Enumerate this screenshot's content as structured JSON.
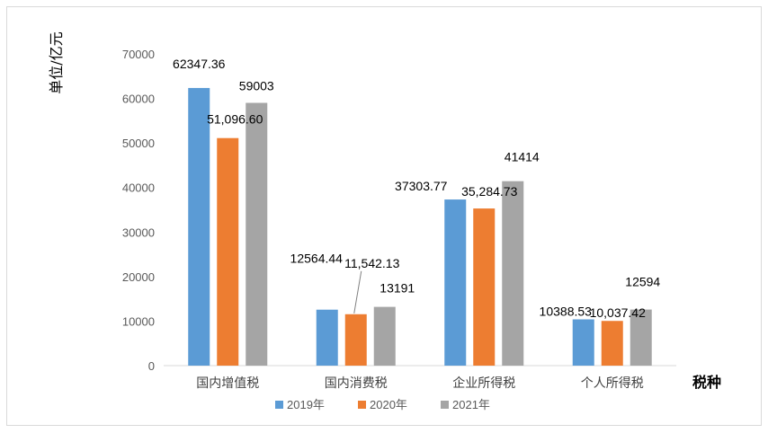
{
  "chart_data": {
    "type": "bar",
    "ylabel": "单位/亿元",
    "xlabel": "税种",
    "ylim": [
      0,
      70000
    ],
    "yticks": [
      "0",
      "10000",
      "20000",
      "30000",
      "40000",
      "50000",
      "60000",
      "70000"
    ],
    "categories": [
      "国内增值税",
      "国内消费税",
      "企业所得税",
      "个人所得税"
    ],
    "series": [
      {
        "name": "2019年",
        "color": "#5b9bd5",
        "values": [
          62347.36,
          12564.44,
          37303.77,
          10388.53
        ],
        "labels": [
          "62347.36",
          "12564.44",
          "37303.77",
          "10388.53"
        ]
      },
      {
        "name": "2020年",
        "color": "#ed7d31",
        "values": [
          51096.6,
          11542.13,
          35284.73,
          10037.42
        ],
        "labels": [
          "51,096.60",
          "11,542.13",
          "35,284.73",
          "10,037.42"
        ]
      },
      {
        "name": "2021年",
        "color": "#a5a5a5",
        "values": [
          59003,
          13191,
          41414,
          12594
        ],
        "labels": [
          "59003",
          "13191",
          "41414",
          "12594"
        ]
      }
    ],
    "grid": false,
    "legend": "bottom"
  }
}
